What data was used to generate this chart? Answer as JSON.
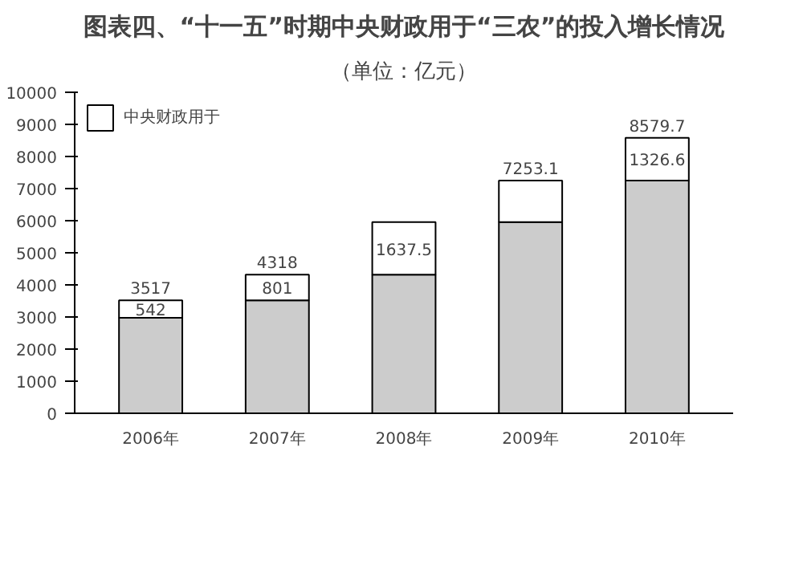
{
  "chart_data": {
    "type": "bar",
    "title": "图表四、“十一五”时期中央财政用于“三农”的投入增长情况",
    "subtitle": "（单位：亿元）",
    "categories": [
      "2006年",
      "2007年",
      "2008年",
      "2009年",
      "2010年"
    ],
    "stacked": true,
    "series": [
      {
        "color": "#cccccc",
        "values": [
          2975,
          3517,
          4318,
          5955.5,
          7253.1
        ]
      },
      {
        "name": "中央财政用于",
        "color": "#ffffff",
        "values": [
          542,
          801,
          1637.5,
          1297.6,
          1326.6
        ],
        "value_labels": [
          "542",
          "801",
          "1637.5",
          null,
          "1326.6"
        ]
      }
    ],
    "totals": [
      "3517",
      "4318",
      null,
      "7253.1",
      "8579.7"
    ],
    "ylim": [
      0,
      10000
    ],
    "yticks": [
      0,
      1000,
      2000,
      3000,
      4000,
      5000,
      6000,
      7000,
      8000,
      9000,
      10000
    ],
    "grid": false,
    "legend": "top left"
  }
}
